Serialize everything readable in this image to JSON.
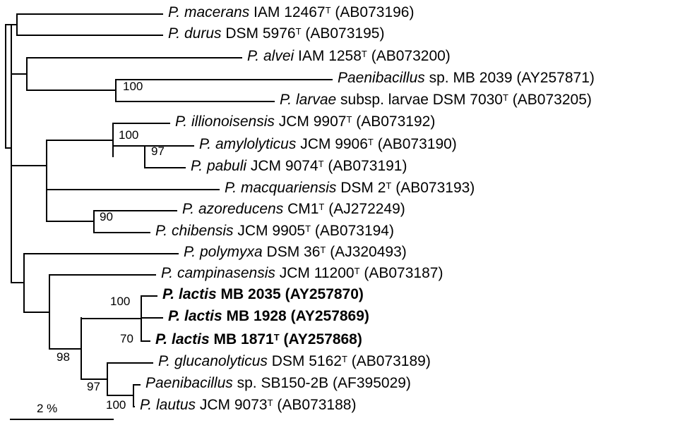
{
  "tree": {
    "leaves": [
      {
        "genus": "P.",
        "species": "macerans",
        "strain": "IAM 12467",
        "type_strain": "T",
        "accession": "(AB073196)",
        "bold": false
      },
      {
        "genus": "P.",
        "species": "durus",
        "strain": "DSM 5976",
        "type_strain": "T",
        "accession": "(AB073195)",
        "bold": false
      },
      {
        "genus": "P.",
        "species": "alvei",
        "strain": "IAM 1258",
        "type_strain": "T",
        "accession": "(AB073200)",
        "bold": false
      },
      {
        "genus": "Paenibacillus",
        "species": "",
        "strain": "sp. MB 2039",
        "type_strain": "",
        "accession": "(AY257871)",
        "bold": false
      },
      {
        "genus": "P.",
        "species": "larvae",
        "strain": "subsp. larvae DSM 7030",
        "type_strain": "T",
        "accession": "(AB073205)",
        "bold": false,
        "subsp_italic": true
      },
      {
        "genus": "P.",
        "species": "illionoisensis",
        "strain": "JCM 9907",
        "type_strain": "T",
        "accession": "(AB073192)",
        "bold": false
      },
      {
        "genus": "P.",
        "species": "amylolyticus",
        "strain": "JCM 9906",
        "type_strain": "T",
        "accession": "(AB073190)",
        "bold": false
      },
      {
        "genus": "P.",
        "species": "pabuli",
        "strain": "JCM 9074",
        "type_strain": "T",
        "accession": "(AB073191)",
        "bold": false
      },
      {
        "genus": "P.",
        "species": "macquariensis",
        "strain": "DSM 2",
        "type_strain": "T",
        "accession": "(AB073193)",
        "bold": false
      },
      {
        "genus": "P.",
        "species": "azoreducens",
        "strain": "CM1",
        "type_strain": "T",
        "accession": "(AJ272249)",
        "bold": false
      },
      {
        "genus": "P.",
        "species": "chibensis",
        "strain": "JCM 9905",
        "type_strain": "T",
        "accession": "(AB073194)",
        "bold": false
      },
      {
        "genus": "P.",
        "species": "polymyxa",
        "strain": "DSM 36",
        "type_strain": "T",
        "accession": "(AJ320493)",
        "bold": false
      },
      {
        "genus": "P.",
        "species": "campinasensis",
        "strain": "JCM 11200",
        "type_strain": "T",
        "accession": "(AB073187)",
        "bold": false
      },
      {
        "genus": "P.",
        "species": "lactis",
        "strain": "MB 2035",
        "type_strain": "",
        "accession": "(AY257870)",
        "bold": true
      },
      {
        "genus": "P.",
        "species": "lactis",
        "strain": "MB 1928",
        "type_strain": "",
        "accession": "(AY257869)",
        "bold": true
      },
      {
        "genus": "P.",
        "species": "lactis",
        "strain": "MB 1871",
        "type_strain": "T",
        "accession": "(AY257868)",
        "bold": true
      },
      {
        "genus": "P.",
        "species": "glucanolyticus",
        "strain": "DSM 5162",
        "type_strain": "T",
        "accession": "(AB073189)",
        "bold": false
      },
      {
        "genus": "Paenibacillus",
        "species": "",
        "strain": "sp. SB150-2B",
        "type_strain": "",
        "accession": "(AF395029)",
        "bold": false
      },
      {
        "genus": "P.",
        "species": "lautus",
        "strain": "JCM 9073",
        "type_strain": "T",
        "accession": "(AB073188)",
        "bold": false
      }
    ],
    "bootstrap_values": [
      "100",
      "100",
      "97",
      "90",
      "100",
      "70",
      "98",
      "97",
      "100"
    ],
    "scale_label": "2 %"
  }
}
